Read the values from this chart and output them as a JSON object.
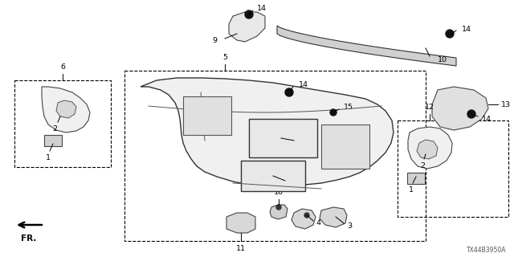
{
  "bg_color": "#ffffff",
  "diagram_code": "TX44B3950A",
  "line_color": "#000000",
  "text_color": "#000000"
}
